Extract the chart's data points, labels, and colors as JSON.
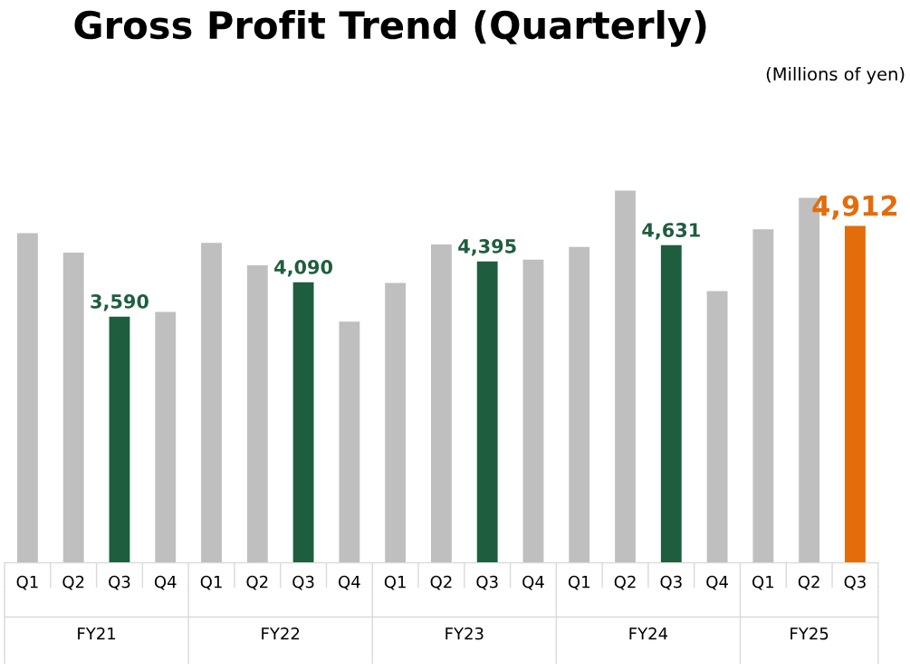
{
  "chart_data": {
    "type": "bar",
    "title": "Gross Profit Trend (Quarterly)",
    "subtitle": "(Millions of yen)",
    "categories": [
      "Q1",
      "Q2",
      "Q3",
      "Q4",
      "Q1",
      "Q2",
      "Q3",
      "Q4",
      "Q1",
      "Q2",
      "Q3",
      "Q4",
      "Q1",
      "Q2",
      "Q3",
      "Q4",
      "Q1",
      "Q2",
      "Q3"
    ],
    "values": [
      4806,
      4525,
      3590,
      3658,
      4666,
      4338,
      4090,
      3517,
      4080,
      4643,
      4395,
      4420,
      4607,
      5428,
      4631,
      3963,
      4865,
      5322,
      4912
    ],
    "colors": [
      "#bfbfbf",
      "#bfbfbf",
      "#1e5e3e",
      "#bfbfbf",
      "#bfbfbf",
      "#bfbfbf",
      "#1e5e3e",
      "#bfbfbf",
      "#bfbfbf",
      "#bfbfbf",
      "#1e5e3e",
      "#bfbfbf",
      "#bfbfbf",
      "#bfbfbf",
      "#1e5e3e",
      "#bfbfbf",
      "#bfbfbf",
      "#bfbfbf",
      "#e46c0a"
    ],
    "value_labels": [
      null,
      null,
      "3,590",
      null,
      null,
      null,
      "4,090",
      null,
      null,
      null,
      "4,395",
      null,
      null,
      null,
      "4,631",
      null,
      null,
      null,
      "4,912"
    ],
    "annotations": [
      "FY21",
      "FY22",
      "FY23",
      "FY24",
      "FY25"
    ],
    "grid": false,
    "legend": false
  }
}
